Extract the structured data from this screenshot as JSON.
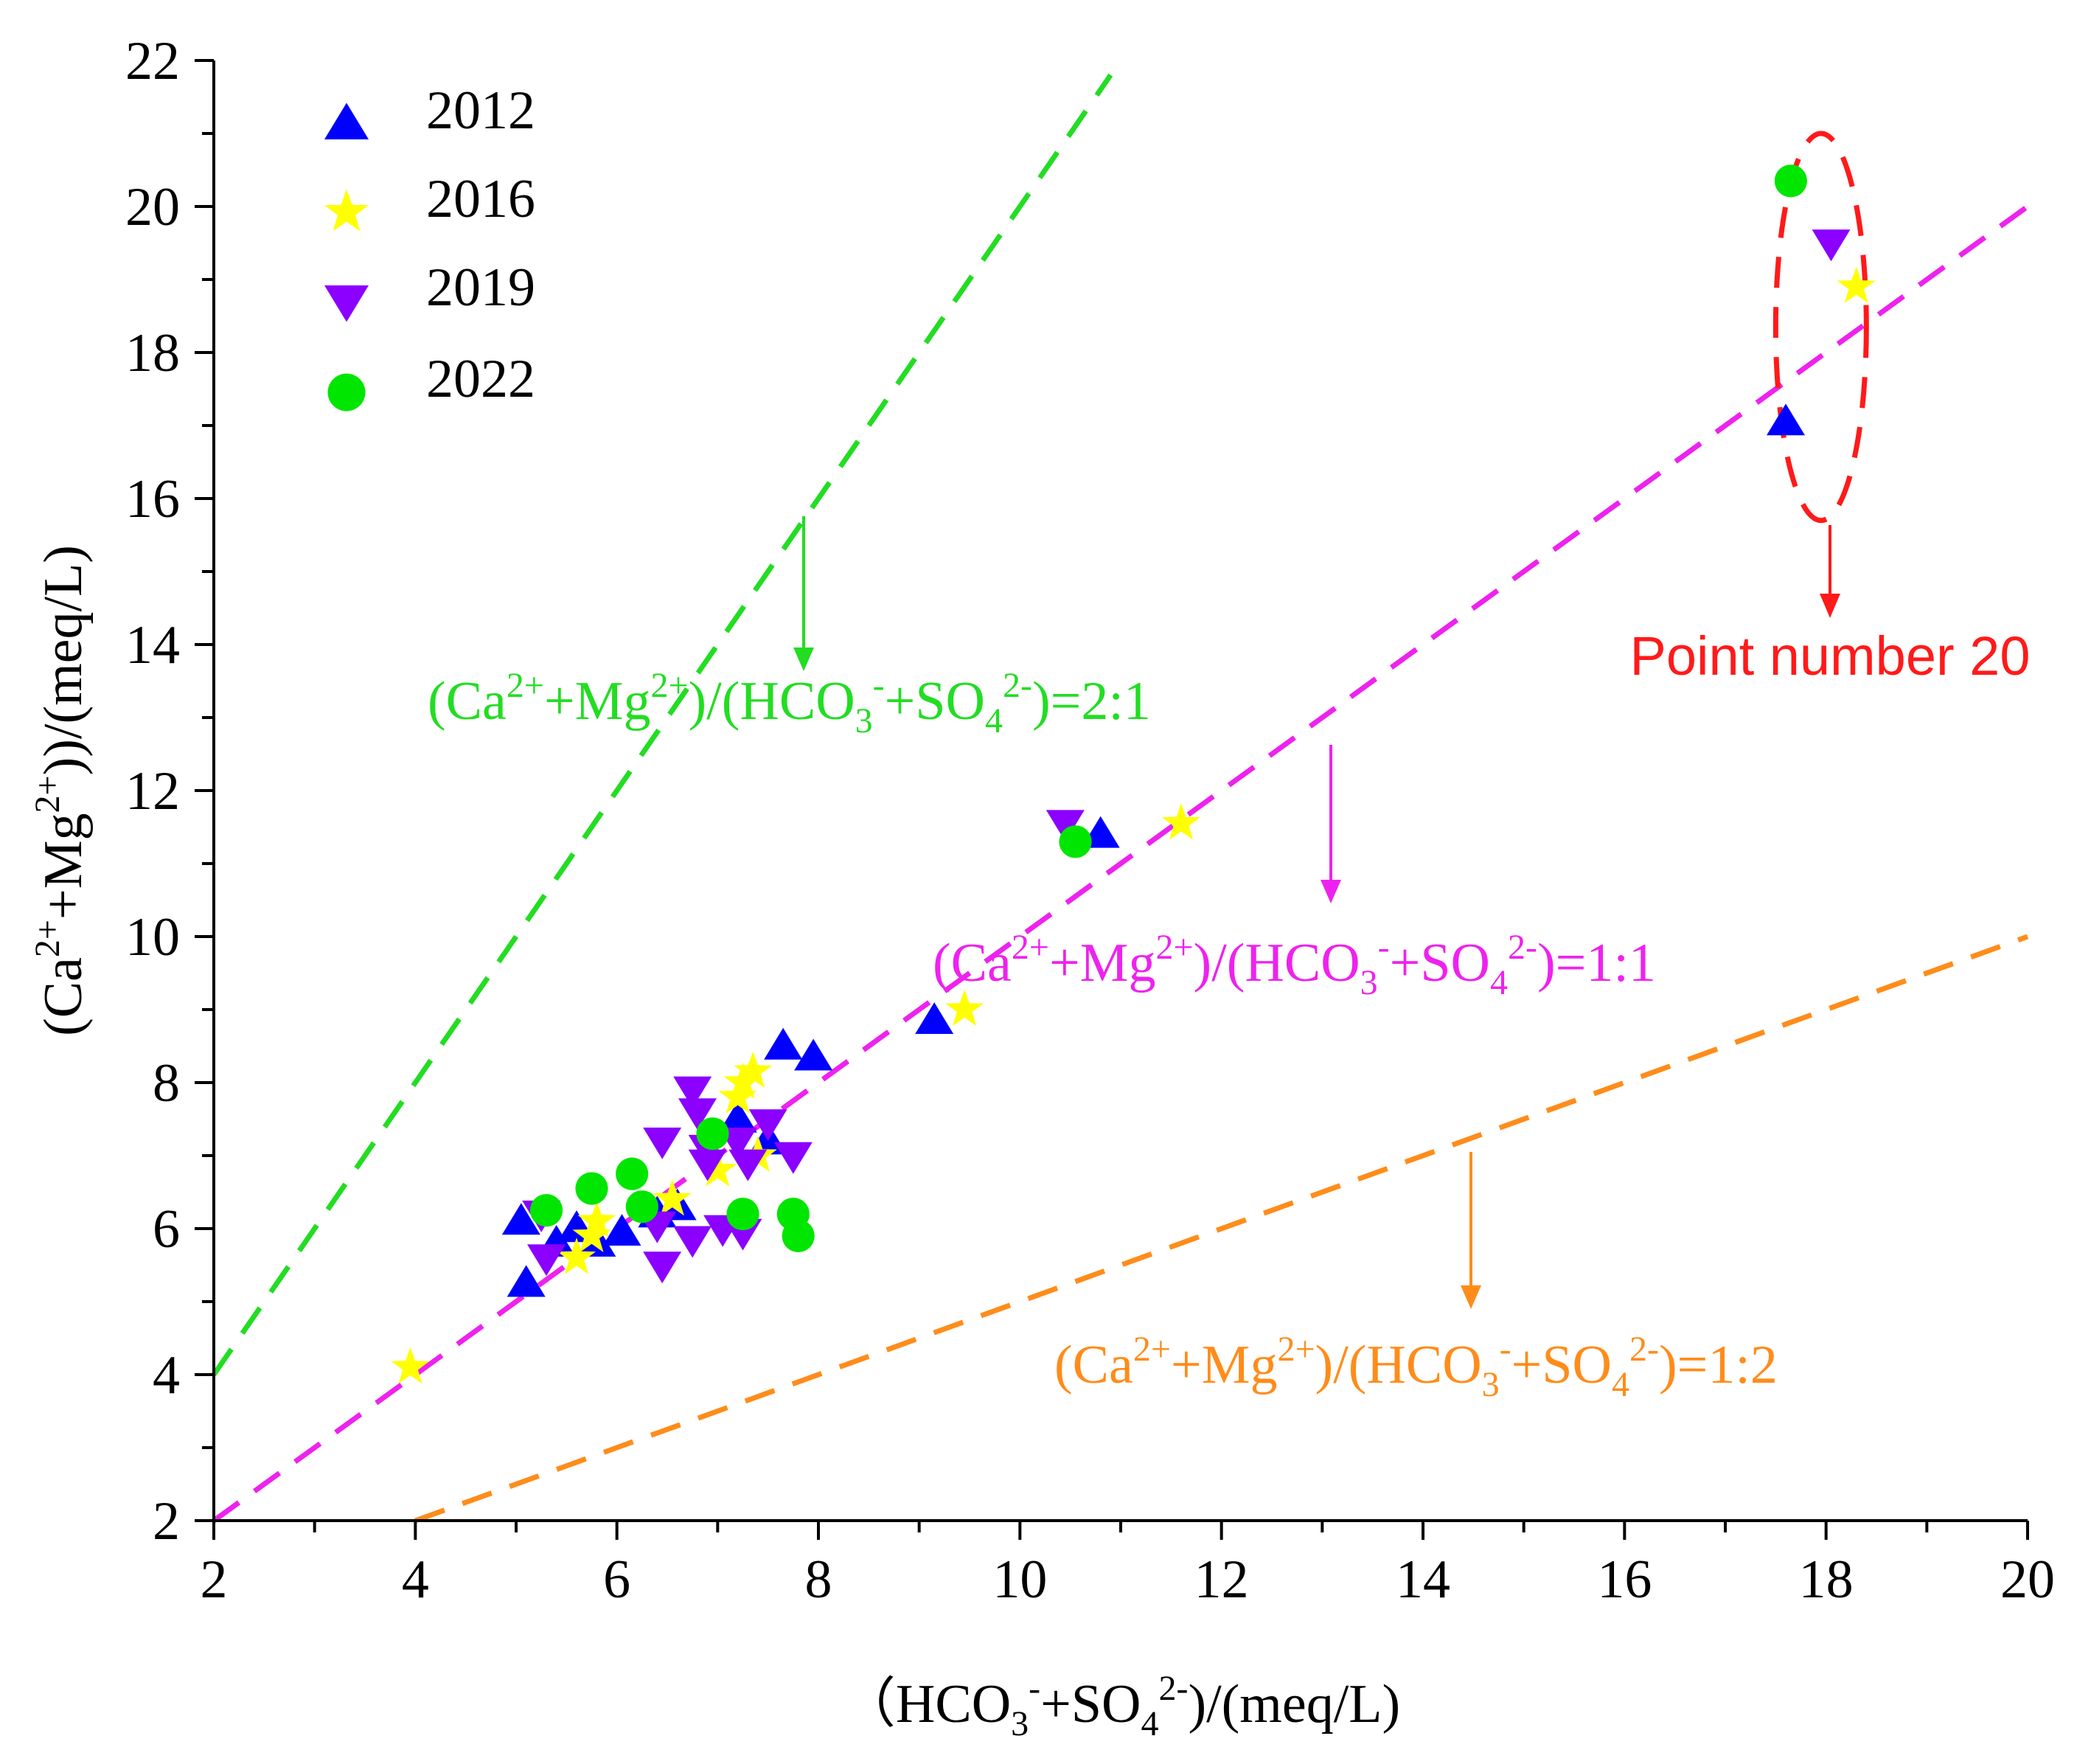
{
  "chart_data": {
    "type": "scatter",
    "xlabel_parts": [
      {
        "t": "（HCO",
        "s": ""
      },
      {
        "t": "3",
        "s": "sub"
      },
      {
        "t": "-",
        "s": "sup"
      },
      {
        "t": "+SO",
        "s": ""
      },
      {
        "t": "4",
        "s": "sub"
      },
      {
        "t": "2-",
        "s": "sup"
      },
      {
        "t": ")/(meq/L)",
        "s": ""
      }
    ],
    "ylabel_parts": [
      {
        "t": "(Ca",
        "s": ""
      },
      {
        "t": "2+",
        "s": "sup"
      },
      {
        "t": "+Mg",
        "s": ""
      },
      {
        "t": "2+",
        "s": "sup"
      },
      {
        "t": "))/(meq/L)",
        "s": ""
      }
    ],
    "xlim": [
      2,
      20
    ],
    "ylim": [
      2,
      22
    ],
    "x_ticks": [
      "2",
      "4",
      "6",
      "8",
      "10",
      "12",
      "14",
      "16",
      "18",
      "20"
    ],
    "y_ticks": [
      "2",
      "4",
      "6",
      "8",
      "10",
      "12",
      "14",
      "16",
      "18",
      "20",
      "22"
    ],
    "series": [
      {
        "name": "2012",
        "marker": "triangle-up",
        "color": "#0000ff",
        "points": [
          [
            5.05,
            6.1
          ],
          [
            5.1,
            5.25
          ],
          [
            5.4,
            5.8
          ],
          [
            5.6,
            6.0
          ],
          [
            5.8,
            5.8
          ],
          [
            6.05,
            5.95
          ],
          [
            6.4,
            6.2
          ],
          [
            6.6,
            6.3
          ],
          [
            7.2,
            7.5
          ],
          [
            7.5,
            7.2
          ],
          [
            7.65,
            8.5
          ],
          [
            7.95,
            8.35
          ],
          [
            9.15,
            8.85
          ],
          [
            10.8,
            11.4
          ],
          [
            17.6,
            17.05
          ]
        ]
      },
      {
        "name": "2016",
        "marker": "star",
        "color": "#ffff00",
        "points": [
          [
            3.95,
            4.1
          ],
          [
            5.6,
            5.6
          ],
          [
            5.75,
            5.9
          ],
          [
            5.8,
            6.1
          ],
          [
            6.55,
            6.4
          ],
          [
            7.2,
            7.8
          ],
          [
            7.25,
            8.0
          ],
          [
            7.35,
            8.15
          ],
          [
            7.0,
            6.8
          ],
          [
            7.4,
            7.0
          ],
          [
            9.45,
            9.0
          ],
          [
            11.6,
            11.55
          ],
          [
            18.3,
            18.9
          ]
        ]
      },
      {
        "name": "2019",
        "marker": "triangle-down",
        "color": "#8b00ff",
        "points": [
          [
            5.25,
            6.2
          ],
          [
            5.3,
            5.6
          ],
          [
            6.45,
            7.2
          ],
          [
            6.45,
            5.5
          ],
          [
            6.4,
            6.05
          ],
          [
            6.75,
            5.85
          ],
          [
            6.75,
            7.9
          ],
          [
            6.8,
            7.6
          ],
          [
            6.9,
            7.1
          ],
          [
            6.9,
            6.9
          ],
          [
            7.2,
            7.2
          ],
          [
            7.3,
            6.9
          ],
          [
            7.05,
            6.0
          ],
          [
            7.25,
            5.95
          ],
          [
            7.5,
            7.45
          ],
          [
            7.75,
            7.0
          ],
          [
            10.45,
            11.55
          ],
          [
            18.05,
            19.5
          ]
        ]
      },
      {
        "name": "2022",
        "marker": "circle",
        "color": "#00e600",
        "points": [
          [
            5.3,
            6.25
          ],
          [
            5.75,
            6.55
          ],
          [
            6.15,
            6.75
          ],
          [
            6.25,
            6.3
          ],
          [
            6.95,
            7.3
          ],
          [
            7.25,
            6.2
          ],
          [
            7.75,
            6.2
          ],
          [
            7.8,
            5.9
          ],
          [
            10.55,
            11.3
          ],
          [
            17.65,
            20.35
          ]
        ]
      }
    ],
    "reference_lines": [
      {
        "ratio": "2:1",
        "color": "#22dd22",
        "slope": 2,
        "x_range": [
          2,
          10.9
        ],
        "label_parts": [
          {
            "t": "(Ca",
            "s": ""
          },
          {
            "t": "2+",
            "s": "sup"
          },
          {
            "t": "+Mg",
            "s": ""
          },
          {
            "t": "2+",
            "s": "sup"
          },
          {
            "t": ")/(HCO",
            "s": ""
          },
          {
            "t": "3",
            "s": "sub"
          },
          {
            "t": "-",
            "s": "sup"
          },
          {
            "t": "+SO",
            "s": ""
          },
          {
            "t": "4",
            "s": "sub"
          },
          {
            "t": "2-",
            "s": "sup"
          },
          {
            "t": ")=2:1",
            "s": ""
          }
        ]
      },
      {
        "ratio": "1:1",
        "color": "#ee22ee",
        "slope": 1,
        "x_range": [
          2,
          20
        ],
        "label_parts": [
          {
            "t": "(Ca",
            "s": ""
          },
          {
            "t": "2+",
            "s": "sup"
          },
          {
            "t": "+Mg",
            "s": ""
          },
          {
            "t": "2+",
            "s": "sup"
          },
          {
            "t": ")/(HCO",
            "s": ""
          },
          {
            "t": "3",
            "s": "sub"
          },
          {
            "t": "-",
            "s": "sup"
          },
          {
            "t": "+SO",
            "s": ""
          },
          {
            "t": "4",
            "s": "sub"
          },
          {
            "t": "2-",
            "s": "sup"
          },
          {
            "t": ")=1:1",
            "s": ""
          }
        ]
      },
      {
        "ratio": "1:2",
        "color": "#ff8c1a",
        "slope": 0.5,
        "x_range": [
          4,
          20
        ],
        "label_parts": [
          {
            "t": "(Ca",
            "s": ""
          },
          {
            "t": "2+",
            "s": "sup"
          },
          {
            "t": "+Mg",
            "s": ""
          },
          {
            "t": "2+",
            "s": "sup"
          },
          {
            "t": ")/(HCO",
            "s": ""
          },
          {
            "t": "3",
            "s": "sub"
          },
          {
            "t": "-",
            "s": "sup"
          },
          {
            "t": "+SO",
            "s": ""
          },
          {
            "t": "4",
            "s": "sub"
          },
          {
            "t": "2-",
            "s": "sup"
          },
          {
            "t": ")=1:2",
            "s": ""
          }
        ]
      }
    ],
    "highlight": {
      "label": "Point number 20",
      "color": "#ff1a1a",
      "center": [
        17.95,
        18.35
      ],
      "semi_axes": [
        0.45,
        2.65
      ]
    },
    "legend_position": "top-left"
  }
}
